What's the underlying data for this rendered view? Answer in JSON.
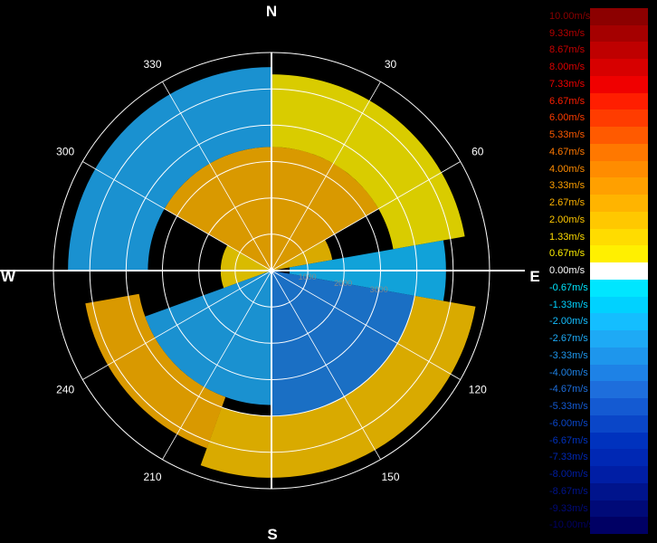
{
  "chart_data": {
    "type": "heatmap",
    "projection": "polar",
    "title": "",
    "cardinals": {
      "n": "N",
      "e": "E",
      "s": "S",
      "w": "W"
    },
    "azimuth_labels": [
      {
        "deg": 30,
        "text": "30"
      },
      {
        "deg": 60,
        "text": "60"
      },
      {
        "deg": 120,
        "text": "120"
      },
      {
        "deg": 150,
        "text": "150"
      },
      {
        "deg": 210,
        "text": "210"
      },
      {
        "deg": 240,
        "text": "240"
      },
      {
        "deg": 300,
        "text": "300"
      },
      {
        "deg": 330,
        "text": "330"
      }
    ],
    "range_rings": [
      1000,
      2000,
      3000,
      4000,
      5000,
      6000
    ],
    "range_labels": [
      {
        "value": 1000,
        "text": "1000"
      },
      {
        "value": 2000,
        "text": "2000"
      },
      {
        "value": 3000,
        "text": "3000"
      }
    ],
    "max_range": 6000,
    "spoke_interval_deg": 30,
    "velocity_regions": [
      {
        "az_from": 300,
        "az_to": 420,
        "range_from": 0,
        "range_to": 3400,
        "velocity": 2.67
      },
      {
        "az_from": 250,
        "az_to": 300,
        "range_from": 0,
        "range_to": 1400,
        "velocity": 1.33
      },
      {
        "az_from": 420,
        "az_to": 440,
        "range_from": 0,
        "range_to": 1700,
        "velocity": 2.0
      },
      {
        "az_from": 80,
        "az_to": 100,
        "range_from": 500,
        "range_to": 4800,
        "velocity": -2.0
      },
      {
        "az_from": 100,
        "az_to": 180,
        "range_from": 0,
        "range_to": 4000,
        "velocity": -4.0
      },
      {
        "az_from": 180,
        "az_to": 250,
        "range_from": 0,
        "range_to": 3700,
        "velocity": -2.67
      },
      {
        "az_from": 100,
        "az_to": 200,
        "range_from": 4000,
        "range_to": 5700,
        "velocity": 2.0
      },
      {
        "az_from": 200,
        "az_to": 260,
        "range_from": 3700,
        "range_to": 5200,
        "velocity": 2.67
      },
      {
        "az_from": 270,
        "az_to": 360,
        "range_from": 3400,
        "range_to": 5600,
        "velocity": -2.67
      },
      {
        "az_from": 0,
        "az_to": 80,
        "range_from": 3400,
        "range_to": 5400,
        "velocity": 0.67
      }
    ],
    "colorbar": {
      "unit": "m/s",
      "entries": [
        {
          "label": "10.00m/s",
          "color": "#8c0000",
          "label_color": "#8c0000"
        },
        {
          "label": "9.33m/s",
          "color": "#a50000",
          "label_color": "#b40000"
        },
        {
          "label": "8.67m/s",
          "color": "#bf0000",
          "label_color": "#c80000"
        },
        {
          "label": "8.00m/s",
          "color": "#d70000",
          "label_color": "#dc0000"
        },
        {
          "label": "7.33m/s",
          "color": "#f00000",
          "label_color": "#f00000"
        },
        {
          "label": "6.67m/s",
          "color": "#ff1e00",
          "label_color": "#ff1e00"
        },
        {
          "label": "6.00m/s",
          "color": "#ff3c00",
          "label_color": "#ff3c00"
        },
        {
          "label": "5.33m/s",
          "color": "#ff5a00",
          "label_color": "#ff5a00"
        },
        {
          "label": "4.67m/s",
          "color": "#ff7800",
          "label_color": "#ff7800"
        },
        {
          "label": "4.00m/s",
          "color": "#ff8c00",
          "label_color": "#ff8c00"
        },
        {
          "label": "3.33m/s",
          "color": "#ffa000",
          "label_color": "#ffa000"
        },
        {
          "label": "2.67m/s",
          "color": "#ffb400",
          "label_color": "#ffb400"
        },
        {
          "label": "2.00m/s",
          "color": "#ffc800",
          "label_color": "#ffc800"
        },
        {
          "label": "1.33m/s",
          "color": "#ffdc00",
          "label_color": "#ffdc00"
        },
        {
          "label": "0.67m/s",
          "color": "#fff000",
          "label_color": "#fff000"
        },
        {
          "label": "0.00m/s",
          "color": "#ffffff",
          "label_color": "#ffffff"
        },
        {
          "label": "-0.67m/s",
          "color": "#00e6ff",
          "label_color": "#00e6ff"
        },
        {
          "label": "-1.33m/s",
          "color": "#00d2ff",
          "label_color": "#00d2ff"
        },
        {
          "label": "-2.00m/s",
          "color": "#14beff",
          "label_color": "#14beff"
        },
        {
          "label": "-2.67m/s",
          "color": "#1eaaf5",
          "label_color": "#1eaaf5"
        },
        {
          "label": "-3.33m/s",
          "color": "#1e96ec",
          "label_color": "#1e96ec"
        },
        {
          "label": "-4.00m/s",
          "color": "#1e82e6",
          "label_color": "#1e82e6"
        },
        {
          "label": "-4.67m/s",
          "color": "#1e6edc",
          "label_color": "#1e6edc"
        },
        {
          "label": "-5.33m/s",
          "color": "#145ad2",
          "label_color": "#145ad2"
        },
        {
          "label": "-6.00m/s",
          "color": "#0a46c8",
          "label_color": "#0a46c8"
        },
        {
          "label": "-6.67m/s",
          "color": "#0032be",
          "label_color": "#0032be"
        },
        {
          "label": "-7.33m/s",
          "color": "#0028b4",
          "label_color": "#0028b4"
        },
        {
          "label": "-8.00m/s",
          "color": "#001ea5",
          "label_color": "#001ea5"
        },
        {
          "label": "-8.67m/s",
          "color": "#00148c",
          "label_color": "#00148c"
        },
        {
          "label": "-9.33m/s",
          "color": "#000a78",
          "label_color": "#000a78"
        },
        {
          "label": "-10.00m/s",
          "color": "#000064",
          "label_color": "#000064"
        }
      ]
    },
    "colors": {
      "background": "#000000",
      "grid": "#ffffff",
      "axis_line": "#ffffff",
      "clutter": "#c8c8c8"
    }
  }
}
